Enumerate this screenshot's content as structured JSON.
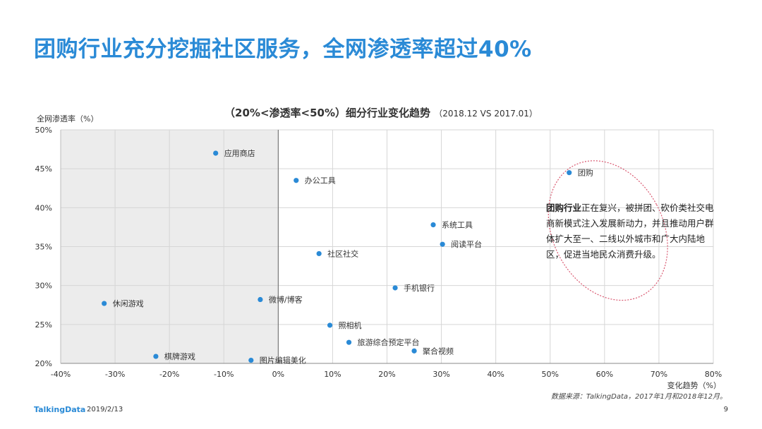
{
  "page": {
    "title": "团购行业充分挖掘社区服务，全网渗透率超过40%",
    "brand": "TalkingData",
    "date": "2019/2/13",
    "page_number": "9",
    "source": "数据来源：TalkingData，2017年1月和2018年12月。"
  },
  "callout": {
    "highlight": "团购行业",
    "text": "正在复兴，被拼团、砍价类社交电商新模式注入发展新动力，并且推动用户群体扩大至一、二线以外城市和广大内陆地区，促进当地民众消费升级。",
    "target_point": "团购"
  },
  "chart_data": {
    "type": "scatter",
    "title": "（20%<渗透率<50%）细分行业变化趋势",
    "subtitle": "（2018.12 VS 2017.01）",
    "xlabel": "变化趋势（%）",
    "ylabel": "全网渗透率（%）",
    "xlim": [
      -40,
      80
    ],
    "ylim": [
      20,
      50
    ],
    "xticks": [
      -40,
      -30,
      -20,
      -10,
      0,
      10,
      20,
      30,
      40,
      50,
      60,
      70,
      80
    ],
    "yticks": [
      20,
      25,
      30,
      35,
      40,
      45,
      50
    ],
    "grid": true,
    "shaded_region": [
      -40,
      0
    ],
    "point_color": "#2a8ad6",
    "points": [
      {
        "label": "应用商店",
        "x": -11.5,
        "y": 47.0
      },
      {
        "label": "办公工具",
        "x": 3.3,
        "y": 43.5
      },
      {
        "label": "团购",
        "x": 53.5,
        "y": 44.5
      },
      {
        "label": "系统工具",
        "x": 28.5,
        "y": 37.8
      },
      {
        "label": "阅读平台",
        "x": 30.2,
        "y": 35.3
      },
      {
        "label": "社区社交",
        "x": 7.5,
        "y": 34.1
      },
      {
        "label": "手机银行",
        "x": 21.5,
        "y": 29.7
      },
      {
        "label": "休闲游戏",
        "x": -32.0,
        "y": 27.7
      },
      {
        "label": "微博/博客",
        "x": -3.3,
        "y": 28.2
      },
      {
        "label": "照相机",
        "x": 9.5,
        "y": 24.9
      },
      {
        "label": "旅游综合预定平台",
        "x": 13.0,
        "y": 22.7
      },
      {
        "label": "聚合视频",
        "x": 25.0,
        "y": 21.6
      },
      {
        "label": "棋牌游戏",
        "x": -22.5,
        "y": 20.9
      },
      {
        "label": "图片编辑美化",
        "x": -5.0,
        "y": 20.4
      }
    ]
  }
}
